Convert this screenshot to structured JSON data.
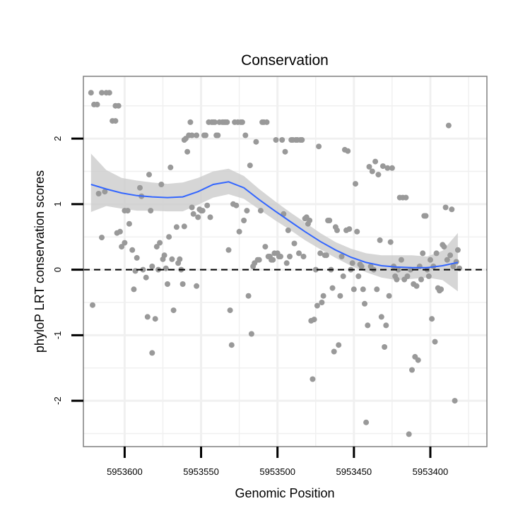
{
  "chart_data": {
    "type": "scatter",
    "title": "Conservation",
    "xlabel": "Genomic Position",
    "ylabel": "phyloP LRT conservation scores",
    "x_reversed": true,
    "xlim": [
      5953627,
      5953363
    ],
    "ylim": [
      -2.7,
      2.95
    ],
    "x_ticks": [
      5953600,
      5953550,
      5953500,
      5953450,
      5953400
    ],
    "x_tick_labels": [
      "5953600",
      "5953550",
      "5953500",
      "5953450",
      "5953400"
    ],
    "y_ticks": [
      -2,
      -1,
      0,
      1,
      2
    ],
    "y_tick_labels": [
      "-2",
      "-1",
      "0",
      "1",
      "2"
    ],
    "reference_line": {
      "y": 0,
      "style": "dashed"
    },
    "colors": {
      "points": "#999999",
      "smooth": "#3366ff",
      "ribbon": "#cccccc",
      "frame": "#7f7f7f",
      "grid": "#f0f0f0"
    },
    "points": [
      [
        5953622,
        2.7
      ],
      [
        5953620,
        2.52
      ],
      [
        5953618,
        2.52
      ],
      [
        5953615,
        2.7
      ],
      [
        5953612,
        2.7
      ],
      [
        5953610,
        2.7
      ],
      [
        5953608,
        2.27
      ],
      [
        5953606,
        2.5
      ],
      [
        5953604,
        2.5
      ],
      [
        5953606,
        2.27
      ],
      [
        5953621,
        -0.54
      ],
      [
        5953617,
        1.16
      ],
      [
        5953615,
        0.49
      ],
      [
        5953613,
        1.19
      ],
      [
        5953605,
        0.56
      ],
      [
        5953603,
        0.58
      ],
      [
        5953600,
        0.9
      ],
      [
        5953598,
        0.9
      ],
      [
        5953602,
        0.35
      ],
      [
        5953600,
        0.41
      ],
      [
        5953597,
        0.7
      ],
      [
        5953595,
        0.3
      ],
      [
        5953594,
        -0.3
      ],
      [
        5953593,
        -0.02
      ],
      [
        5953592,
        0.18
      ],
      [
        5953590,
        1.25
      ],
      [
        5953589,
        1.12
      ],
      [
        5953588,
        0.0
      ],
      [
        5953586,
        -0.12
      ],
      [
        5953585,
        -0.72
      ],
      [
        5953584,
        1.45
      ],
      [
        5953583,
        0.9
      ],
      [
        5953582,
        0.05
      ],
      [
        5953582,
        -1.27
      ],
      [
        5953580,
        -0.75
      ],
      [
        5953579,
        0.35
      ],
      [
        5953578,
        0.0
      ],
      [
        5953577,
        0.41
      ],
      [
        5953576,
        1.3
      ],
      [
        5953575,
        0.16
      ],
      [
        5953574,
        0.22
      ],
      [
        5953573,
        0.02
      ],
      [
        5953572,
        -0.22
      ],
      [
        5953571,
        0.5
      ],
      [
        5953570,
        1.56
      ],
      [
        5953569,
        0.16
      ],
      [
        5953568,
        -0.62
      ],
      [
        5953566,
        0.65
      ],
      [
        5953565,
        0.1
      ],
      [
        5953564,
        0.16
      ],
      [
        5953563,
        0.0
      ],
      [
        5953562,
        -0.22
      ],
      [
        5953561,
        0.66
      ],
      [
        5953561,
        1.98
      ],
      [
        5953560,
        2.0
      ],
      [
        5953559,
        1.8
      ],
      [
        5953558,
        2.05
      ],
      [
        5953557,
        2.25
      ],
      [
        5953556,
        0.95
      ],
      [
        5953556,
        2.05
      ],
      [
        5953555,
        0.85
      ],
      [
        5953553,
        2.05
      ],
      [
        5953553,
        -0.25
      ],
      [
        5953552,
        0.8
      ],
      [
        5953551,
        0.92
      ],
      [
        5953550,
        0.9
      ],
      [
        5953549,
        0.9
      ],
      [
        5953548,
        2.05
      ],
      [
        5953547,
        2.05
      ],
      [
        5953546,
        0.98
      ],
      [
        5953545,
        2.25
      ],
      [
        5953544,
        0.8
      ],
      [
        5953543,
        2.25
      ],
      [
        5953542,
        2.25
      ],
      [
        5953541,
        2.25
      ],
      [
        5953540,
        2.05
      ],
      [
        5953539,
        2.05
      ],
      [
        5953538,
        2.25
      ],
      [
        5953536,
        2.25
      ],
      [
        5953535,
        2.25
      ],
      [
        5953534,
        2.25
      ],
      [
        5953533,
        2.25
      ],
      [
        5953532,
        0.3
      ],
      [
        5953531,
        -0.62
      ],
      [
        5953530,
        -1.15
      ],
      [
        5953529,
        1.0
      ],
      [
        5953528,
        2.25
      ],
      [
        5953527,
        0.98
      ],
      [
        5953526,
        2.25
      ],
      [
        5953525,
        0.58
      ],
      [
        5953524,
        2.25
      ],
      [
        5953523,
        2.25
      ],
      [
        5953522,
        0.75
      ],
      [
        5953521,
        2.05
      ],
      [
        5953520,
        0.9
      ],
      [
        5953519,
        -0.4
      ],
      [
        5953518,
        1.59
      ],
      [
        5953517,
        -0.98
      ],
      [
        5953516,
        0.05
      ],
      [
        5953515,
        0.1
      ],
      [
        5953514,
        1.95
      ],
      [
        5953513,
        0.15
      ],
      [
        5953512,
        0.15
      ],
      [
        5953511,
        0.9
      ],
      [
        5953510,
        2.25
      ],
      [
        5953509,
        2.25
      ],
      [
        5953508,
        0.35
      ],
      [
        5953507,
        2.25
      ],
      [
        5953506,
        0.2
      ],
      [
        5953505,
        0.2
      ],
      [
        5953504,
        0.15
      ],
      [
        5953503,
        0.15
      ],
      [
        5953502,
        0.25
      ],
      [
        5953501,
        1.98
      ],
      [
        5953500,
        0.25
      ],
      [
        5953499,
        0.2
      ],
      [
        5953498,
        0.2
      ],
      [
        5953497,
        1.98
      ],
      [
        5953496,
        0.85
      ],
      [
        5953495,
        1.8
      ],
      [
        5953494,
        0.1
      ],
      [
        5953493,
        0.6
      ],
      [
        5953492,
        0.2
      ],
      [
        5953491,
        1.98
      ],
      [
        5953490,
        1.98
      ],
      [
        5953489,
        0.4
      ],
      [
        5953488,
        1.98
      ],
      [
        5953487,
        1.98
      ],
      [
        5953486,
        0.25
      ],
      [
        5953485,
        1.98
      ],
      [
        5953484,
        1.98
      ],
      [
        5953483,
        0.2
      ],
      [
        5953482,
        0.78
      ],
      [
        5953481,
        0.8
      ],
      [
        5953480,
        0.7
      ],
      [
        5953479,
        0.75
      ],
      [
        5953478,
        -0.78
      ],
      [
        5953477,
        -1.67
      ],
      [
        5953476,
        -0.76
      ],
      [
        5953475,
        0.0
      ],
      [
        5953474,
        -0.55
      ],
      [
        5953473,
        1.88
      ],
      [
        5953472,
        0.25
      ],
      [
        5953471,
        -0.5
      ],
      [
        5953470,
        -0.4
      ],
      [
        5953469,
        0.22
      ],
      [
        5953468,
        0.22
      ],
      [
        5953467,
        0.75
      ],
      [
        5953466,
        0.75
      ],
      [
        5953465,
        0.0
      ],
      [
        5953464,
        -0.28
      ],
      [
        5953463,
        -1.25
      ],
      [
        5953462,
        0.65
      ],
      [
        5953461,
        0.6
      ],
      [
        5953460,
        -1.15
      ],
      [
        5953459,
        -0.4
      ],
      [
        5953458,
        0.2
      ],
      [
        5953457,
        -0.1
      ],
      [
        5953456,
        1.83
      ],
      [
        5953455,
        0.6
      ],
      [
        5953454,
        1.81
      ],
      [
        5953453,
        0.62
      ],
      [
        5953452,
        0.0
      ],
      [
        5953451,
        0.1
      ],
      [
        5953450,
        -0.3
      ],
      [
        5953449,
        1.31
      ],
      [
        5953448,
        0.58
      ],
      [
        5953447,
        -0.1
      ],
      [
        5953446,
        0.08
      ],
      [
        5953445,
        0.05
      ],
      [
        5953444,
        -0.3
      ],
      [
        5953443,
        -0.52
      ],
      [
        5953442,
        -2.33
      ],
      [
        5953441,
        -0.85
      ],
      [
        5953440,
        1.57
      ],
      [
        5953439,
        0.05
      ],
      [
        5953438,
        1.5
      ],
      [
        5953437,
        0.0
      ],
      [
        5953436,
        1.65
      ],
      [
        5953435,
        -0.3
      ],
      [
        5953434,
        1.45
      ],
      [
        5953433,
        0.45
      ],
      [
        5953432,
        -0.72
      ],
      [
        5953431,
        1.58
      ],
      [
        5953430,
        -1.18
      ],
      [
        5953429,
        -0.85
      ],
      [
        5953428,
        1.55
      ],
      [
        5953427,
        -0.4
      ],
      [
        5953426,
        0.42
      ],
      [
        5953425,
        1.55
      ],
      [
        5953424,
        0.05
      ],
      [
        5953423,
        -0.1
      ],
      [
        5953422,
        -0.15
      ],
      [
        5953421,
        0.0
      ],
      [
        5953420,
        1.1
      ],
      [
        5953419,
        0.15
      ],
      [
        5953418,
        1.1
      ],
      [
        5953417,
        -0.15
      ],
      [
        5953416,
        1.1
      ],
      [
        5953415,
        -0.1
      ],
      [
        5953414,
        -2.51
      ],
      [
        5953413,
        0.0
      ],
      [
        5953412,
        -1.53
      ],
      [
        5953411,
        -0.22
      ],
      [
        5953410,
        -1.33
      ],
      [
        5953409,
        -0.25
      ],
      [
        5953408,
        -1.38
      ],
      [
        5953407,
        0.05
      ],
      [
        5953406,
        -0.15
      ],
      [
        5953405,
        0.25
      ],
      [
        5953404,
        0.82
      ],
      [
        5953403,
        0.82
      ],
      [
        5953402,
        0.0
      ],
      [
        5953401,
        -0.1
      ],
      [
        5953400,
        0.15
      ],
      [
        5953399,
        -0.75
      ],
      [
        5953398,
        0.05
      ],
      [
        5953397,
        -1.1
      ],
      [
        5953396,
        0.25
      ],
      [
        5953395,
        -0.28
      ],
      [
        5953394,
        -0.32
      ],
      [
        5953393,
        -0.3
      ],
      [
        5953392,
        0.38
      ],
      [
        5953391,
        0.35
      ],
      [
        5953390,
        0.95
      ],
      [
        5953389,
        0.15
      ],
      [
        5953388,
        2.2
      ],
      [
        5953387,
        0.22
      ],
      [
        5953386,
        0.92
      ],
      [
        5953385,
        0.05
      ],
      [
        5953384,
        -2.0
      ],
      [
        5953383,
        0.12
      ],
      [
        5953382,
        0.3
      ],
      [
        5953381,
        0.02
      ]
    ],
    "smooth_x": [
      5953622,
      5953612,
      5953602,
      5953592,
      5953582,
      5953572,
      5953562,
      5953552,
      5953542,
      5953532,
      5953522,
      5953512,
      5953502,
      5953492,
      5953482,
      5953472,
      5953462,
      5953452,
      5953442,
      5953432,
      5953422,
      5953412,
      5953402,
      5953392,
      5953382
    ],
    "smooth_fit": [
      1.3,
      1.23,
      1.17,
      1.13,
      1.11,
      1.1,
      1.11,
      1.19,
      1.3,
      1.34,
      1.25,
      1.07,
      0.9,
      0.74,
      0.58,
      0.43,
      0.3,
      0.19,
      0.11,
      0.06,
      0.04,
      0.03,
      0.03,
      0.06,
      0.11
    ],
    "smooth_lo": [
      0.88,
      0.97,
      0.93,
      0.9,
      0.9,
      0.89,
      0.89,
      0.99,
      1.1,
      1.15,
      1.08,
      0.92,
      0.76,
      0.61,
      0.45,
      0.31,
      0.18,
      0.06,
      -0.04,
      -0.12,
      -0.16,
      -0.14,
      -0.12,
      -0.16,
      -0.33
    ],
    "smooth_hi": [
      1.77,
      1.52,
      1.4,
      1.36,
      1.33,
      1.31,
      1.33,
      1.4,
      1.5,
      1.54,
      1.43,
      1.23,
      1.05,
      0.88,
      0.72,
      0.56,
      0.42,
      0.32,
      0.25,
      0.22,
      0.22,
      0.22,
      0.2,
      0.29,
      0.56
    ]
  }
}
